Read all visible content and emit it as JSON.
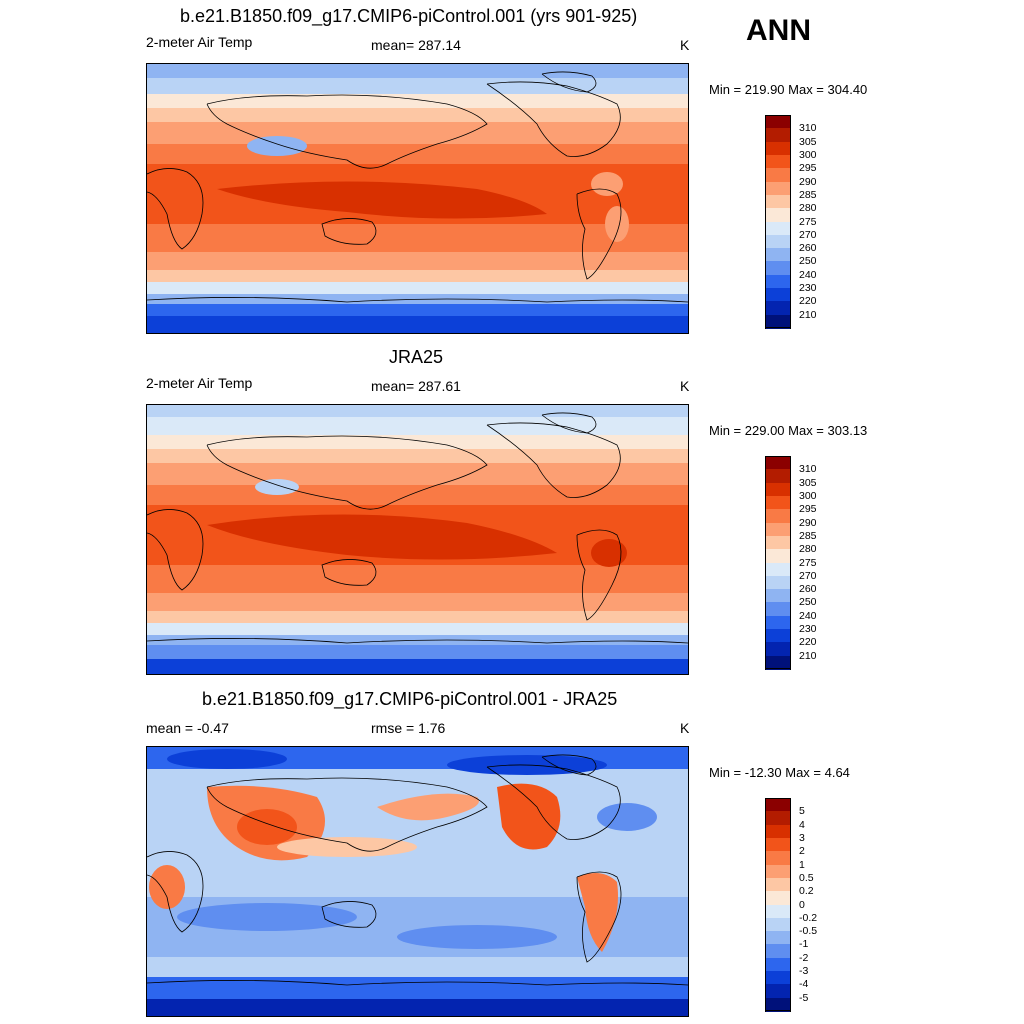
{
  "season": "ANN",
  "panels": [
    {
      "id": "model",
      "title": "b.e21.B1850.f09_g17.CMIP6-piControl.001 (yrs 901-925)",
      "left_label": "2-meter Air Temp",
      "center_label": "mean= 287.14",
      "units": "K",
      "minmax": "Min = 219.90 Max = 304.40"
    },
    {
      "id": "obs",
      "title": "JRA25",
      "left_label": "2-meter Air Temp",
      "center_label": "mean= 287.61",
      "units": "K",
      "minmax": "Min = 229.00 Max = 303.13"
    },
    {
      "id": "diff",
      "title": "b.e21.B1850.f09_g17.CMIP6-piControl.001 - JRA25",
      "left_label": "mean =  -0.47",
      "center_label": "rmse =   1.76",
      "units": "K",
      "minmax": "Min = -12.30 Max =   4.64"
    }
  ],
  "colorbars": {
    "temp": {
      "labels": [
        "310",
        "305",
        "300",
        "295",
        "290",
        "285",
        "280",
        "275",
        "270",
        "260",
        "250",
        "240",
        "230",
        "220",
        "210"
      ],
      "colors": [
        "#8b0000",
        "#b31c00",
        "#d83000",
        "#f2541a",
        "#f97a45",
        "#fc9f73",
        "#fdc7a4",
        "#fbe8d7",
        "#dae9f8",
        "#b9d3f5",
        "#8fb4f2",
        "#5f8ef0",
        "#2d66ee",
        "#0c40d8",
        "#0324b0",
        "#00117a"
      ]
    },
    "diff": {
      "labels": [
        "5",
        "4",
        "3",
        "2",
        "1",
        "0.5",
        "0.2",
        "0",
        "-0.2",
        "-0.5",
        "-1",
        "-2",
        "-3",
        "-4",
        "-5"
      ],
      "colors": [
        "#8b0000",
        "#b31c00",
        "#d83000",
        "#f2541a",
        "#f97a45",
        "#fc9f73",
        "#fdc7a4",
        "#fbe8d7",
        "#dae9f8",
        "#b9d3f5",
        "#8fb4f2",
        "#5f8ef0",
        "#2d66ee",
        "#0c40d8",
        "#0324b0",
        "#00117a"
      ]
    }
  }
}
